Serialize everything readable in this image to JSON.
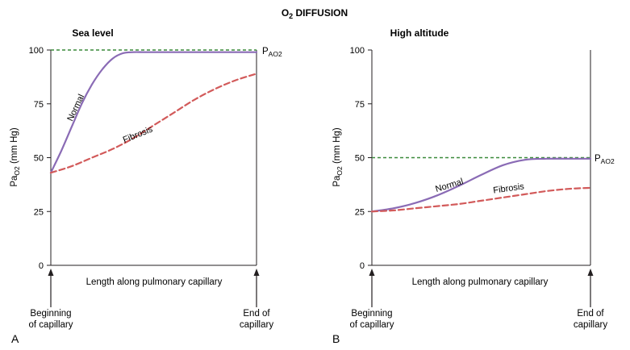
{
  "figure": {
    "title_prefix": "O",
    "title_sub": "2",
    "title_rest": " DIFFUSION"
  },
  "panels": [
    {
      "id": "A",
      "letter": "A",
      "title": "Sea level",
      "ylabel_main": "Pa",
      "ylabel_sub": "O2",
      "ylabel_unit": " (mm Hg)",
      "xlabel": "Length along pulmonary capillary",
      "start_label_1": "Beginning",
      "start_label_2": "of capillary",
      "end_label_1": "End of",
      "end_label_2": "capillary",
      "ref_label_main": "P",
      "ref_label_sub": "AO2",
      "normal_label": "Normal",
      "fibrosis_label": "Fibrosis"
    },
    {
      "id": "B",
      "letter": "B",
      "title": "High altitude",
      "ylabel_main": "Pa",
      "ylabel_sub": "O2",
      "ylabel_unit": " (mm Hg)",
      "xlabel": "Length along pulmonary capillary",
      "start_label_1": "Beginning",
      "start_label_2": "of capillary",
      "end_label_1": "End of",
      "end_label_2": "capillary",
      "ref_label_main": "P",
      "ref_label_sub": "AO2",
      "normal_label": "Normal",
      "fibrosis_label": "Fibrosis"
    }
  ],
  "colors": {
    "normal": "#8a6bb5",
    "fibrosis": "#d25a5a",
    "reference": "#3a8a3a",
    "axis": "#231f20"
  },
  "chart_data": [
    {
      "type": "line",
      "title": "Sea level",
      "xlabel": "Length along pulmonary capillary",
      "ylabel": "PaO2 (mm Hg)",
      "xlim": [
        0,
        1
      ],
      "ylim": [
        0,
        100
      ],
      "yticks": [
        0,
        25,
        50,
        75,
        100
      ],
      "grid": false,
      "reference_line": {
        "name": "PAO2",
        "y": 100,
        "style": "dashed"
      },
      "series": [
        {
          "name": "Normal",
          "style": "solid",
          "x": [
            0,
            0.05,
            0.1,
            0.15,
            0.2,
            0.25,
            0.3,
            0.35,
            0.4,
            0.45,
            0.5,
            0.6,
            0.7,
            0.8,
            0.9,
            1.0
          ],
          "y": [
            43,
            53,
            64,
            75,
            84,
            91,
            96,
            98.5,
            99,
            99,
            99,
            99,
            99,
            99,
            99,
            99
          ]
        },
        {
          "name": "Fibrosis",
          "style": "dashed",
          "x": [
            0,
            0.1,
            0.2,
            0.3,
            0.4,
            0.5,
            0.6,
            0.7,
            0.8,
            0.9,
            1.0
          ],
          "y": [
            43,
            46,
            50,
            54,
            59,
            65,
            71,
            77,
            82,
            86,
            89
          ]
        }
      ]
    },
    {
      "type": "line",
      "title": "High altitude",
      "xlabel": "Length along pulmonary capillary",
      "ylabel": "PaO2 (mm Hg)",
      "xlim": [
        0,
        1
      ],
      "ylim": [
        0,
        100
      ],
      "yticks": [
        0,
        25,
        50,
        75,
        100
      ],
      "grid": false,
      "reference_line": {
        "name": "PAO2",
        "y": 50,
        "style": "dashed"
      },
      "series": [
        {
          "name": "Normal",
          "style": "solid",
          "x": [
            0,
            0.1,
            0.2,
            0.3,
            0.4,
            0.5,
            0.6,
            0.7,
            0.8,
            0.9,
            1.0
          ],
          "y": [
            25,
            26.5,
            29,
            32.5,
            37,
            42,
            46.5,
            49,
            49.5,
            49.5,
            49.5
          ]
        },
        {
          "name": "Fibrosis",
          "style": "dashed",
          "x": [
            0,
            0.1,
            0.2,
            0.3,
            0.4,
            0.5,
            0.6,
            0.7,
            0.8,
            0.9,
            1.0
          ],
          "y": [
            25,
            25.5,
            26.5,
            27.5,
            28.5,
            30,
            31.5,
            33,
            34.5,
            35.5,
            36
          ]
        }
      ]
    }
  ]
}
